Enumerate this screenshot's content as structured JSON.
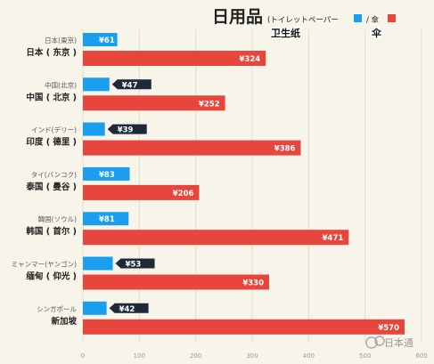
{
  "title": "日用品",
  "subtitle": "(トイレットペーパー",
  "legend_sep": "/ 傘",
  "legend_close": "",
  "zh_toilet": "卫生纸",
  "zh_umbrella": "伞",
  "watermark": "日本通",
  "colors": {
    "toilet": "#1a9ff0",
    "umbrella": "#e8463c",
    "tag": "#1e2a3a",
    "grid": "#e3dccb"
  },
  "chart_data": {
    "type": "bar",
    "title": "日用品",
    "categories": [
      {
        "ja": "日本(東京)",
        "zh": "日本 ( 东京 )"
      },
      {
        "ja": "中国(北京)",
        "zh": "中国 ( 北京 )"
      },
      {
        "ja": "インド(デリー)",
        "zh": "印度 ( 德里 )"
      },
      {
        "ja": "タイ(バンコク)",
        "zh": "泰国 ( 曼谷 )"
      },
      {
        "ja": "韓国(ソウル)",
        "zh": "韩国 ( 首尔 )"
      },
      {
        "ja": "ミャンマー(ヤンゴン)",
        "zh": "缅甸 ( 仰光 )"
      },
      {
        "ja": "シンガポール",
        "zh": "新加坡"
      }
    ],
    "series": [
      {
        "name": "トイレットペーパー",
        "values": [
          61,
          47,
          39,
          83,
          81,
          53,
          42
        ],
        "labels": [
          "¥61",
          "¥47",
          "¥39",
          "¥83",
          "¥81",
          "¥53",
          "¥42"
        ]
      },
      {
        "name": "傘",
        "values": [
          324,
          252,
          386,
          206,
          471,
          330,
          570
        ],
        "labels": [
          "¥324",
          "¥252",
          "¥386",
          "¥206",
          "¥471",
          "¥330",
          "¥570"
        ]
      }
    ],
    "xlim": [
      0,
      600
    ],
    "xticks": [
      "0",
      "100",
      "200",
      "300",
      "400",
      "500",
      "600"
    ],
    "grid": true
  }
}
